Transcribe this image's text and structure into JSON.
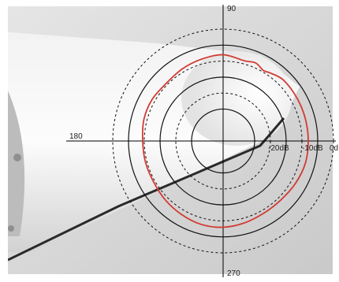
{
  "chart_data": {
    "type": "polar-line",
    "angle_labels": [
      "90",
      "180",
      "270"
    ],
    "radial_tick_labels": [
      "-20dB",
      "-10dB",
      "0d"
    ],
    "colors": {
      "pattern": "#d23a32",
      "rings": "#111111",
      "axes": "#000000"
    },
    "series": [
      {
        "theta_deg": [
          0,
          15,
          30,
          45,
          55,
          60,
          67,
          75,
          90,
          105,
          120,
          135,
          150,
          165,
          180,
          195,
          210,
          225,
          240,
          255,
          270,
          285,
          300,
          315,
          330,
          345,
          360
        ],
        "r_db": [
          -3,
          -3,
          -3,
          -3,
          -4,
          -4.5,
          -3.5,
          -4,
          -3,
          -3.5,
          -4,
          -4.5,
          -4,
          -4,
          -4.5,
          -4.5,
          -4.5,
          -4,
          -3.5,
          -3,
          -3,
          -3.5,
          -4,
          -4,
          -3.5,
          -3,
          -3
        ]
      }
    ],
    "rings_db": {
      "solid": [
        -20,
        -10,
        0
      ],
      "dashed": [
        -15,
        -5,
        5
      ]
    },
    "r_range_db": [
      -30,
      5
    ]
  }
}
